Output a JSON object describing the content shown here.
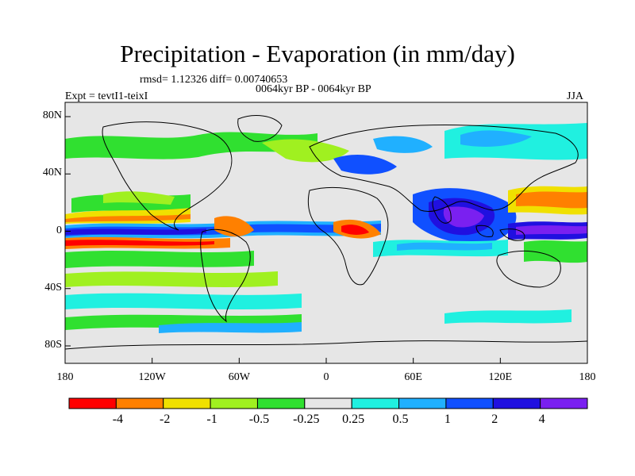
{
  "title": "Precipitation - Evaporation (in mm/day)",
  "stats_line": "rmsd= 1.12326 diff= 0.00740653",
  "experiment": "Expt = tevtI1-teixI",
  "period": "0064kyr BP - 0064kyr BP",
  "season": "JJA",
  "lat_ticks": [
    "80N",
    "40N",
    "0",
    "40S",
    "80S"
  ],
  "lon_ticks": [
    "180",
    "120W",
    "60W",
    "0",
    "60E",
    "120E",
    "180"
  ],
  "colorbar": {
    "labels": [
      "-4",
      "-2",
      "-1",
      "-0.5",
      "-0.25",
      "0.25",
      "0.5",
      "1",
      "2",
      "4"
    ],
    "colors": [
      "#ff0000",
      "#ff8000",
      "#f0e000",
      "#a0f020",
      "#30e030",
      "#e6e6e6",
      "#20f0e0",
      "#20b0ff",
      "#1050ff",
      "#2010e0",
      "#7a20f0"
    ]
  },
  "colors": {
    "ocean_neutral": "#e6e6e6",
    "coast": "#000000"
  }
}
